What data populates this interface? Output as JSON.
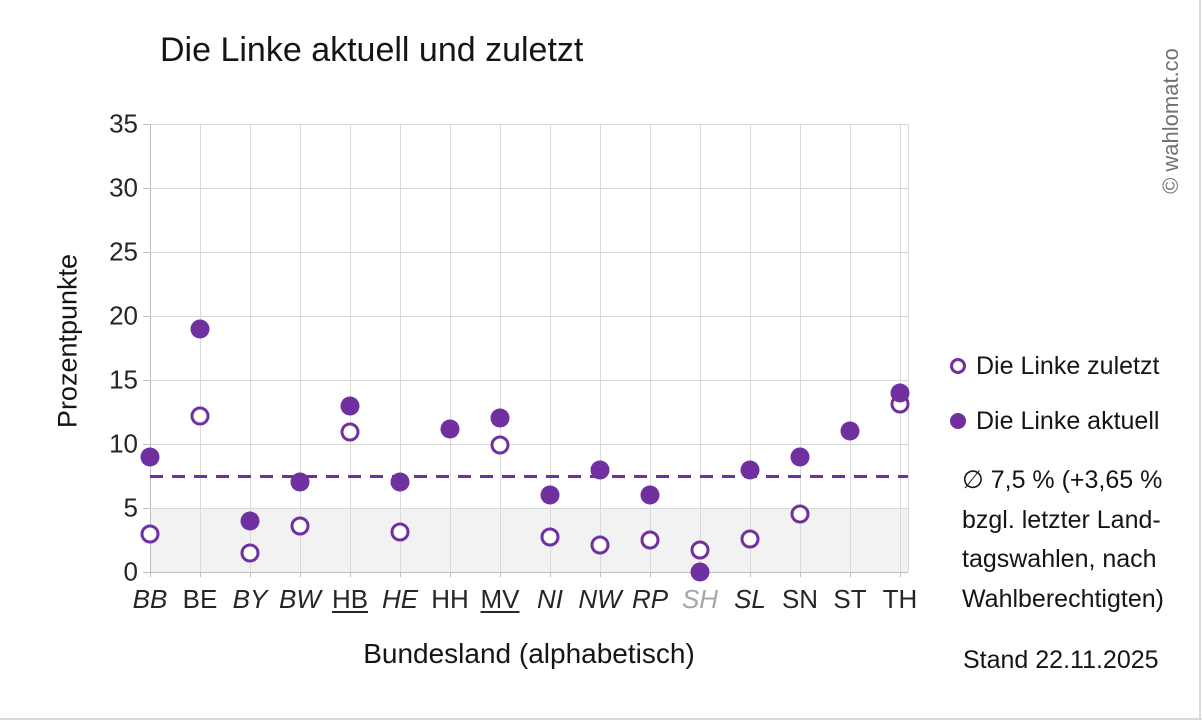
{
  "title": "Die Linke aktuell und zuletzt",
  "watermark": "© wahlomat.co",
  "stand_date": "Stand 22.11.2025",
  "legend": [
    {
      "label": "Die Linke zuletzt",
      "marker": "open"
    },
    {
      "label": "Die Linke aktuell",
      "marker": "filled"
    }
  ],
  "annotation": {
    "lines": [
      "∅ 7,5 % (+3,65 %",
      "bzgl. letzter Land-",
      "tagswahlen, nach",
      "Wahlberechtigten)"
    ]
  },
  "colors": {
    "purple": "#7030A0",
    "grid": "#d9d9d9",
    "axis": "#bfbfbf",
    "band": "#f2f2f2",
    "muted_label": "#a6a6a6",
    "watermark": "#737373"
  },
  "chart_data": {
    "type": "scatter",
    "title": "Die Linke aktuell und zuletzt",
    "xlabel": "Bundesland (alphabetisch)",
    "ylabel": "Prozentpunkte",
    "ylim": [
      0,
      35
    ],
    "ytick_step": 5,
    "grid": true,
    "legend_position": "right",
    "categories": [
      {
        "label": "BB",
        "italic": true,
        "underline": false,
        "muted": false
      },
      {
        "label": "BE",
        "italic": false,
        "underline": false,
        "muted": false
      },
      {
        "label": "BY",
        "italic": true,
        "underline": false,
        "muted": false
      },
      {
        "label": "BW",
        "italic": true,
        "underline": false,
        "muted": false
      },
      {
        "label": "HB",
        "italic": false,
        "underline": true,
        "muted": false
      },
      {
        "label": "HE",
        "italic": true,
        "underline": false,
        "muted": false
      },
      {
        "label": "HH",
        "italic": false,
        "underline": false,
        "muted": false
      },
      {
        "label": "MV",
        "italic": false,
        "underline": true,
        "muted": false
      },
      {
        "label": "NI",
        "italic": true,
        "underline": false,
        "muted": false
      },
      {
        "label": "NW",
        "italic": true,
        "underline": false,
        "muted": false
      },
      {
        "label": "RP",
        "italic": true,
        "underline": false,
        "muted": false
      },
      {
        "label": "SH",
        "italic": true,
        "underline": false,
        "muted": true
      },
      {
        "label": "SL",
        "italic": true,
        "underline": false,
        "muted": false
      },
      {
        "label": "SN",
        "italic": false,
        "underline": false,
        "muted": false
      },
      {
        "label": "ST",
        "italic": false,
        "underline": false,
        "muted": false
      },
      {
        "label": "TH",
        "italic": false,
        "underline": false,
        "muted": false
      }
    ],
    "series": [
      {
        "name": "Die Linke zuletzt",
        "marker": "open",
        "values": [
          3.0,
          12.2,
          1.5,
          3.6,
          10.9,
          3.1,
          null,
          9.9,
          2.7,
          2.1,
          2.5,
          1.7,
          2.6,
          4.5,
          null,
          13.1
        ]
      },
      {
        "name": "Die Linke aktuell",
        "marker": "filled",
        "values": [
          9,
          19,
          4,
          7,
          13,
          7,
          11.2,
          12,
          6,
          8,
          6,
          0,
          8,
          9,
          11,
          14
        ]
      }
    ],
    "mean_line": {
      "value": 7.5,
      "style": "dashed"
    },
    "shaded_band": {
      "from": 0,
      "to": 5
    }
  }
}
